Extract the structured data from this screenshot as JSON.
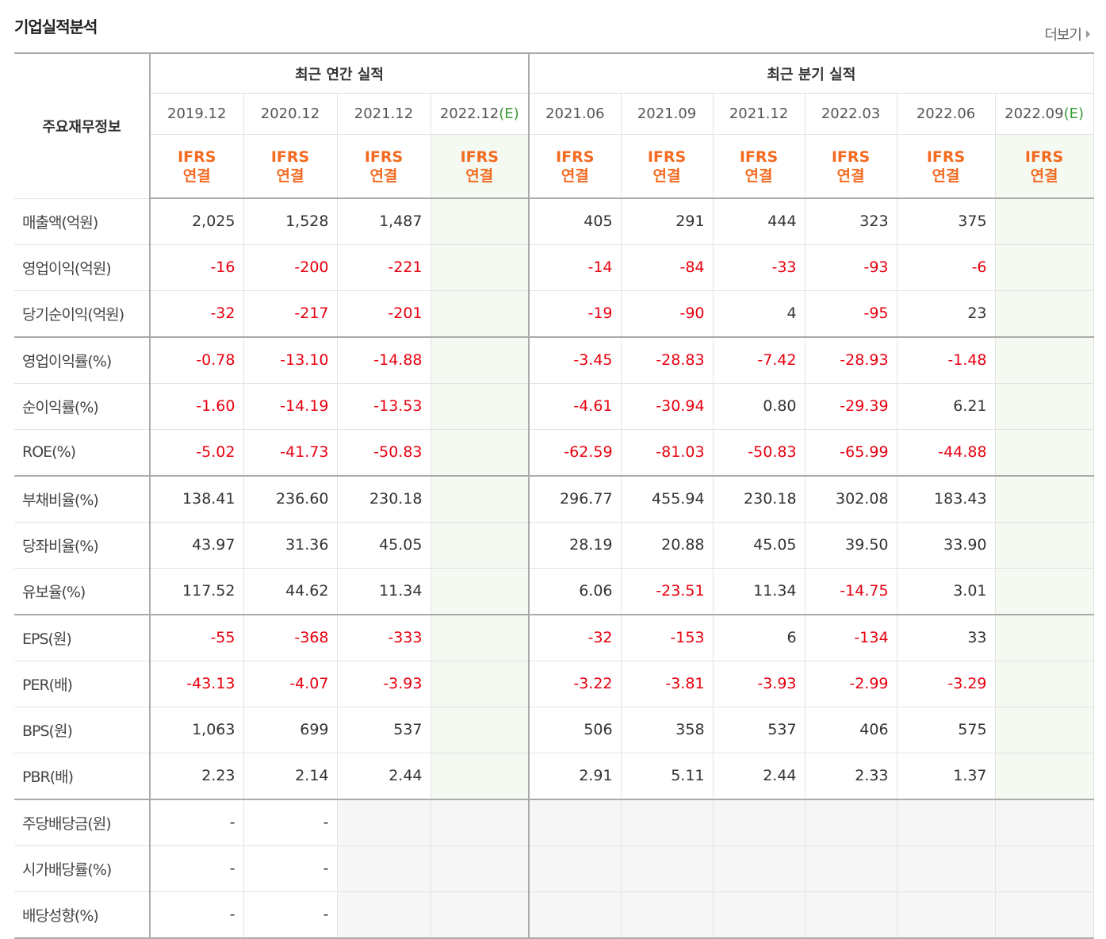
{
  "title": "기업실적분석",
  "more_label": "더보기",
  "header": {
    "stub": "주요재무정보",
    "annual_group": "최근 연간 실적",
    "quarter_group": "최근 분기 실적",
    "ifrs_top": "IFRS",
    "ifrs_bottom": "연결",
    "estimate_mark": "(E)"
  },
  "annual_periods": [
    "2019.12",
    "2020.12",
    "2021.12",
    "2022.12"
  ],
  "quarter_periods": [
    "2021.06",
    "2021.09",
    "2021.12",
    "2022.03",
    "2022.06",
    "2022.09"
  ],
  "rows": [
    {
      "label": "매출액(억원)",
      "values": [
        "2,025",
        "1,528",
        "1,487",
        "",
        "405",
        "291",
        "444",
        "323",
        "375",
        ""
      ]
    },
    {
      "label": "영업이익(억원)",
      "values": [
        "-16",
        "-200",
        "-221",
        "",
        "-14",
        "-84",
        "-33",
        "-93",
        "-6",
        ""
      ]
    },
    {
      "label": "당기순이익(억원)",
      "values": [
        "-32",
        "-217",
        "-201",
        "",
        "-19",
        "-90",
        "4",
        "-95",
        "23",
        ""
      ]
    },
    {
      "label": "영업이익률(%)",
      "values": [
        "-0.78",
        "-13.10",
        "-14.88",
        "",
        "-3.45",
        "-28.83",
        "-7.42",
        "-28.93",
        "-1.48",
        ""
      ]
    },
    {
      "label": "순이익률(%)",
      "values": [
        "-1.60",
        "-14.19",
        "-13.53",
        "",
        "-4.61",
        "-30.94",
        "0.80",
        "-29.39",
        "6.21",
        ""
      ]
    },
    {
      "label": "ROE(%)",
      "values": [
        "-5.02",
        "-41.73",
        "-50.83",
        "",
        "-62.59",
        "-81.03",
        "-50.83",
        "-65.99",
        "-44.88",
        ""
      ]
    },
    {
      "label": "부채비율(%)",
      "values": [
        "138.41",
        "236.60",
        "230.18",
        "",
        "296.77",
        "455.94",
        "230.18",
        "302.08",
        "183.43",
        ""
      ]
    },
    {
      "label": "당좌비율(%)",
      "values": [
        "43.97",
        "31.36",
        "45.05",
        "",
        "28.19",
        "20.88",
        "45.05",
        "39.50",
        "33.90",
        ""
      ]
    },
    {
      "label": "유보율(%)",
      "values": [
        "117.52",
        "44.62",
        "11.34",
        "",
        "6.06",
        "-23.51",
        "11.34",
        "-14.75",
        "3.01",
        ""
      ]
    },
    {
      "label": "EPS(원)",
      "values": [
        "-55",
        "-368",
        "-333",
        "",
        "-32",
        "-153",
        "6",
        "-134",
        "33",
        ""
      ]
    },
    {
      "label": "PER(배)",
      "values": [
        "-43.13",
        "-4.07",
        "-3.93",
        "",
        "-3.22",
        "-3.81",
        "-3.93",
        "-2.99",
        "-3.29",
        ""
      ]
    },
    {
      "label": "BPS(원)",
      "values": [
        "1,063",
        "699",
        "537",
        "",
        "506",
        "358",
        "537",
        "406",
        "575",
        ""
      ]
    },
    {
      "label": "PBR(배)",
      "values": [
        "2.23",
        "2.14",
        "2.44",
        "",
        "2.91",
        "5.11",
        "2.44",
        "2.33",
        "1.37",
        ""
      ]
    },
    {
      "label": "주당배당금(원)",
      "values": [
        "-",
        "-",
        null,
        null,
        null,
        null,
        null,
        null,
        null,
        null
      ]
    },
    {
      "label": "시가배당률(%)",
      "values": [
        "-",
        "-",
        null,
        null,
        null,
        null,
        null,
        null,
        null,
        null
      ]
    },
    {
      "label": "배당성향(%)",
      "values": [
        "-",
        "-",
        null,
        null,
        null,
        null,
        null,
        null,
        null,
        null
      ]
    }
  ]
}
